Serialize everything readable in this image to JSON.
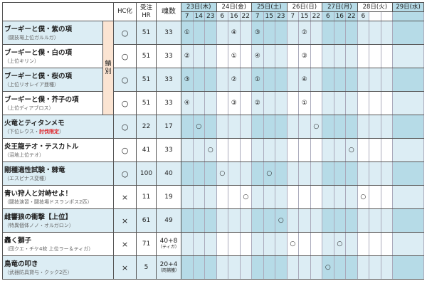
{
  "header": {
    "hc": "HC化",
    "hr_line1": "受注",
    "hr_line2": "HR",
    "souls": "魂数",
    "group_label": "鯖別"
  },
  "days": [
    {
      "label": "23日(木)",
      "times": [
        "7",
        "14",
        "23"
      ],
      "dark": true
    },
    {
      "label": "24日(金)",
      "times": [
        "6",
        "16",
        "22"
      ],
      "dark": false
    },
    {
      "label": "25日(土)",
      "times": [
        "7",
        "15",
        "23"
      ],
      "dark": true
    },
    {
      "label": "26日(日)",
      "times": [
        "7",
        "15",
        "22"
      ],
      "dark": false
    },
    {
      "label": "27日(月)",
      "times": [
        "6",
        "16",
        "22"
      ],
      "dark": true
    },
    {
      "label": "28日(火)",
      "times": [
        "6",
        "",
        ""
      ],
      "dark": false
    },
    {
      "label": "29日(水)",
      "times": [
        ""
      ],
      "dark": true
    }
  ],
  "colors": {
    "dark_blue": "#b6dbe7",
    "light_blue": "#dcedf4",
    "white": "#ffffff",
    "group_bg": "#fbe4d2",
    "highlight_red": "#e0262b"
  },
  "rows": [
    {
      "name": "ブーギーと僕・紫の項",
      "sub": "（闘技場上位ガルルガ）",
      "hc": "○",
      "hr": "51",
      "souls": "33",
      "grouped": true,
      "marks": [
        {
          "day": 0,
          "time": "7",
          "mark": "①"
        },
        {
          "day": 1,
          "time": "16",
          "mark": "④"
        },
        {
          "day": 2,
          "time": "7",
          "mark": "③"
        },
        {
          "day": 3,
          "time": "15",
          "mark": "②"
        }
      ]
    },
    {
      "name": "ブーギーと僕・白の項",
      "sub": "（上位キリン）",
      "hc": "○",
      "hr": "51",
      "souls": "33",
      "grouped": true,
      "marks": [
        {
          "day": 0,
          "time": "7",
          "mark": "②"
        },
        {
          "day": 1,
          "time": "16",
          "mark": "①"
        },
        {
          "day": 2,
          "time": "7",
          "mark": "④"
        },
        {
          "day": 3,
          "time": "15",
          "mark": "③"
        }
      ]
    },
    {
      "name": "ブーギーと僕・桜の項",
      "sub": "（上位リオレイア亜種）",
      "hc": "○",
      "hr": "51",
      "souls": "33",
      "grouped": true,
      "marks": [
        {
          "day": 0,
          "time": "7",
          "mark": "③"
        },
        {
          "day": 1,
          "time": "16",
          "mark": "②"
        },
        {
          "day": 2,
          "time": "7",
          "mark": "①"
        },
        {
          "day": 3,
          "time": "15",
          "mark": "④"
        }
      ]
    },
    {
      "name": "ブーギーと僕・芥子の項",
      "sub": "（上位ディアブロス）",
      "hc": "○",
      "hr": "51",
      "souls": "33",
      "grouped": true,
      "marks": [
        {
          "day": 0,
          "time": "7",
          "mark": "④"
        },
        {
          "day": 1,
          "time": "16",
          "mark": "③"
        },
        {
          "day": 2,
          "time": "7",
          "mark": "②"
        },
        {
          "day": 3,
          "time": "15",
          "mark": "①"
        }
      ]
    },
    {
      "name": "火竜とティタンメモ",
      "sub": "（下位レウス・",
      "sub_highlight": "討伐限定",
      "sub_suffix": "）",
      "hc": "○",
      "hr": "22",
      "souls": "17",
      "marks": [
        {
          "day": 0,
          "time": "14",
          "mark": "○"
        },
        {
          "day": 3,
          "time": "22",
          "mark": "○"
        }
      ]
    },
    {
      "name": "炎王龍テオ・テスカトル",
      "sub": "（沼地上位テオ）",
      "hc": "○",
      "hr": "41",
      "souls": "33",
      "marks": [
        {
          "day": 0,
          "time": "23",
          "mark": "○"
        },
        {
          "day": 4,
          "time": "22",
          "mark": "○"
        }
      ]
    },
    {
      "name": "剛種適性試験・棘竜",
      "sub": "（エスピナス変種）",
      "hc": "○",
      "hr": "100",
      "souls": "40",
      "marks": [
        {
          "day": 1,
          "time": "6",
          "mark": "○"
        },
        {
          "day": 2,
          "time": "15",
          "mark": "○"
        }
      ]
    },
    {
      "name": "青い狩人と対峙せよ！",
      "sub": "（闘技演習・闘技場ドスランポス2匹）",
      "hc": "×",
      "hr": "11",
      "souls": "19",
      "marks": [
        {
          "day": 1,
          "time": "22",
          "mark": "○"
        },
        {
          "day": 5,
          "time": "6",
          "mark": "○"
        }
      ]
    },
    {
      "name": "雌響狼の衝撃【上位】",
      "sub": "（特異個体ノノ・オルガロン）",
      "hc": "×",
      "hr": "61",
      "souls": "49",
      "marks": [
        {
          "day": 2,
          "time": "23",
          "mark": "○"
        }
      ]
    },
    {
      "name": "轟く獅子",
      "sub": "（団クエ・チケ4枚 上位ラー＆ティガ）",
      "hc": "×",
      "hr": "71",
      "souls": "40+8",
      "souls_note": "（ティガ）",
      "marks": [
        {
          "day": 3,
          "time": "7",
          "mark": "○"
        },
        {
          "day": 4,
          "time": "16",
          "mark": "○"
        }
      ]
    },
    {
      "name": "鳥竜の叩き",
      "sub": "（武器防具貸与・クック2匹）",
      "hc": "×",
      "hr": "5",
      "souls": "20+4",
      "souls_note": "（両捕獲）",
      "marks": [
        {
          "day": 4,
          "time": "6",
          "mark": "○"
        }
      ]
    }
  ]
}
